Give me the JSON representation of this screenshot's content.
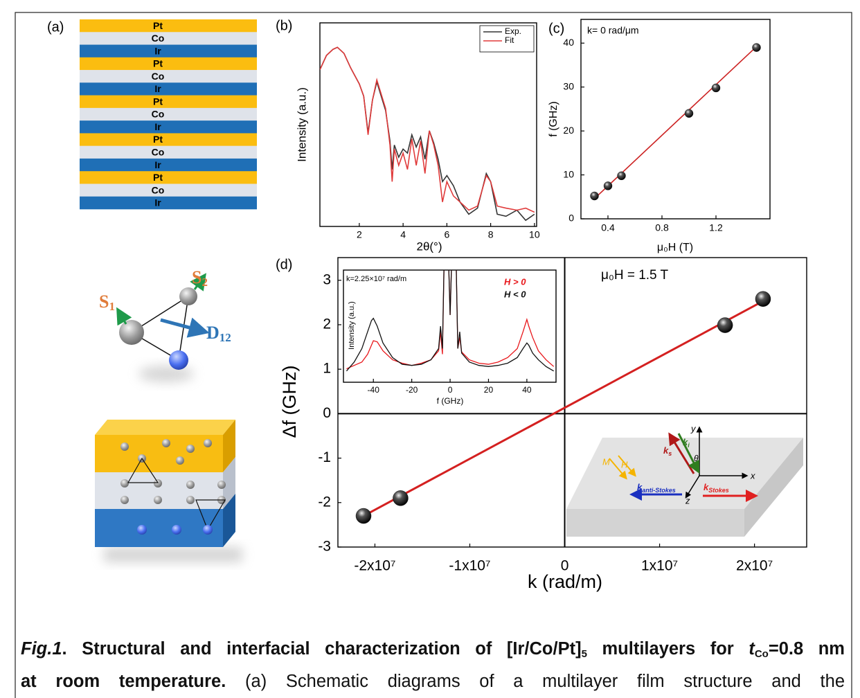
{
  "panel_a": {
    "label": "(a)"
  },
  "stack": {
    "layers": [
      "Pt",
      "Co",
      "Ir",
      "Pt",
      "Co",
      "Ir",
      "Pt",
      "Co",
      "Ir",
      "Pt",
      "Co",
      "Ir",
      "Pt",
      "Co",
      "Ir"
    ],
    "colors": {
      "Pt": "#fbbd10",
      "Co": "#dfe3ea",
      "Ir": "#1f6fb6"
    }
  },
  "dmi": {
    "s1": [
      "S",
      "1"
    ],
    "s2": [
      "S",
      "2"
    ],
    "d12": [
      "D",
      "12"
    ]
  },
  "chart_data": [
    {
      "type": "line",
      "label": "(b)",
      "xlabel": "2θ(°)",
      "ylabel": "Intensity (a.u.)",
      "x": [
        0.2,
        0.5,
        0.8,
        1.0,
        1.3,
        1.6,
        2.0,
        2.2,
        2.4,
        2.6,
        2.8,
        3.0,
        3.2,
        3.4,
        3.5,
        3.6,
        3.8,
        4.0,
        4.2,
        4.4,
        4.6,
        4.8,
        5.0,
        5.2,
        5.4,
        5.6,
        5.8,
        6.0,
        6.3,
        6.6,
        7.0,
        7.4,
        7.8,
        8.0,
        8.3,
        8.7,
        9.2,
        9.6,
        10.0
      ],
      "series": [
        {
          "name": "Exp.",
          "color": "#333333",
          "values": [
            0.77,
            0.84,
            0.87,
            0.88,
            0.85,
            0.78,
            0.7,
            0.64,
            0.46,
            0.62,
            0.71,
            0.64,
            0.57,
            0.42,
            0.28,
            0.4,
            0.34,
            0.38,
            0.36,
            0.45,
            0.39,
            0.44,
            0.33,
            0.47,
            0.41,
            0.33,
            0.22,
            0.25,
            0.2,
            0.12,
            0.06,
            0.09,
            0.26,
            0.22,
            0.06,
            0.05,
            0.08,
            0.03,
            0.06
          ]
        },
        {
          "name": "Fit",
          "color": "#e03a3a",
          "values": [
            0.77,
            0.84,
            0.87,
            0.88,
            0.85,
            0.78,
            0.7,
            0.64,
            0.45,
            0.62,
            0.72,
            0.65,
            0.58,
            0.4,
            0.22,
            0.38,
            0.3,
            0.36,
            0.28,
            0.43,
            0.3,
            0.42,
            0.26,
            0.47,
            0.4,
            0.3,
            0.12,
            0.22,
            0.15,
            0.12,
            0.08,
            0.1,
            0.25,
            0.22,
            0.1,
            0.09,
            0.08,
            0.09,
            0.07
          ]
        }
      ],
      "xlim": [
        0.2,
        10.1
      ],
      "xticks": [
        2,
        4,
        6,
        8,
        10
      ],
      "ylim": [
        0,
        1
      ],
      "legend": "upper right"
    },
    {
      "type": "scatter",
      "label": "(c)",
      "annotation": "k= 0 rad/μm",
      "xlabel": "μ₀H (T)",
      "ylabel": "f (GHz)",
      "x": [
        0.3,
        0.4,
        0.5,
        1.0,
        1.2,
        1.5
      ],
      "series": [
        {
          "color": "#111111",
          "values": [
            5.2,
            7.5,
            9.8,
            24.0,
            29.8,
            39.0
          ]
        }
      ],
      "fit": {
        "x": [
          0.3,
          1.5
        ],
        "values": [
          4.6,
          39.2
        ],
        "color": "#cc2222"
      },
      "xlim": [
        0.2,
        1.6
      ],
      "xticks": [
        0.4,
        0.8,
        1.2
      ],
      "ylim": [
        0,
        45.4
      ],
      "yticks": [
        0,
        10,
        20,
        30,
        40
      ]
    },
    {
      "type": "scatter",
      "label": "(d)",
      "annotation": "μ₀H = 1.5 T",
      "xlabel": "k (rad/m)",
      "ylabel": "Δf (GHz)",
      "x": [
        -21200000,
        -17300000,
        16900000,
        20900000
      ],
      "series": [
        {
          "color": "#111111",
          "values": [
            -2.3,
            -1.9,
            1.99,
            2.58
          ]
        }
      ],
      "fit": {
        "x": [
          -21200000,
          21500000
        ],
        "values": [
          -2.3,
          2.6
        ],
        "color": "#d42020"
      },
      "xlim": [
        -23900000,
        25500000
      ],
      "xticks": [
        {
          "value": -20000000,
          "label": "-2x10⁷"
        },
        {
          "value": -10000000,
          "label": "-1x10⁷"
        },
        0,
        {
          "value": 10000000,
          "label": "1x10⁷"
        },
        {
          "value": 20000000,
          "label": "2x10⁷"
        }
      ],
      "ylim": [
        -3,
        3.51
      ],
      "yticks": [
        -3,
        -2,
        -1,
        0,
        1,
        2,
        3
      ],
      "zero_lines": true
    },
    {
      "type": "line",
      "annotation": "k=2.25×10⁷ rad/m",
      "xlabel": "f (GHz)",
      "ylabel": "Intensity (a.u.)",
      "x": [
        -54,
        -50,
        -46,
        -43,
        -41,
        -40,
        -38,
        -35,
        -30,
        -25,
        -20,
        -15,
        -10,
        -6,
        -5,
        -4,
        -3,
        -1,
        0,
        1,
        3,
        4,
        5,
        6,
        10,
        15,
        20,
        25,
        30,
        35,
        38,
        40,
        41,
        43,
        46,
        50,
        54
      ],
      "series": [
        {
          "name": "H > 0",
          "color": "#e8161a",
          "values": [
            0.12,
            0.15,
            0.18,
            0.25,
            0.33,
            0.37,
            0.36,
            0.28,
            0.2,
            0.17,
            0.15,
            0.17,
            0.2,
            0.28,
            0.45,
            0.25,
            1.2,
            1.2,
            0.6,
            1.2,
            1.2,
            0.3,
            0.4,
            0.27,
            0.2,
            0.17,
            0.16,
            0.18,
            0.22,
            0.3,
            0.45,
            0.56,
            0.5,
            0.4,
            0.28,
            0.2,
            0.14
          ]
        },
        {
          "name": "H < 0",
          "color": "#111111",
          "values": [
            0.1,
            0.18,
            0.3,
            0.45,
            0.55,
            0.57,
            0.5,
            0.35,
            0.22,
            0.16,
            0.15,
            0.16,
            0.2,
            0.3,
            0.5,
            0.3,
            1.2,
            1.2,
            0.6,
            1.2,
            1.2,
            0.3,
            0.45,
            0.26,
            0.18,
            0.15,
            0.14,
            0.15,
            0.17,
            0.22,
            0.3,
            0.35,
            0.33,
            0.26,
            0.2,
            0.14,
            0.1
          ]
        }
      ],
      "xlim": [
        -55.6,
        55.2
      ],
      "xticks": [
        -40,
        -20,
        0,
        20,
        40
      ],
      "ylim": [
        0,
        1
      ],
      "legend": "upper right"
    }
  ],
  "schematic": {
    "M": "M",
    "H": "H",
    "k_i": [
      "k",
      "i"
    ],
    "k_s": [
      "k",
      "s"
    ],
    "theta": "θ",
    "x": "x",
    "y": "y",
    "z": "z",
    "k_anti": [
      "k",
      "anti-Stokes"
    ],
    "k_stokes": [
      "k",
      "Stokes"
    ]
  },
  "caption": {
    "label": "Fig.1",
    "dot": ".",
    "title": [
      "Structural and interfacial characterization of [Ir/Co/Pt]",
      "5",
      " multilayers for ",
      "t",
      "Co",
      "=0.8 nm",
      "at room temperature."
    ],
    "text": " (a) Schematic diagrams of a multilayer film structure and the"
  }
}
